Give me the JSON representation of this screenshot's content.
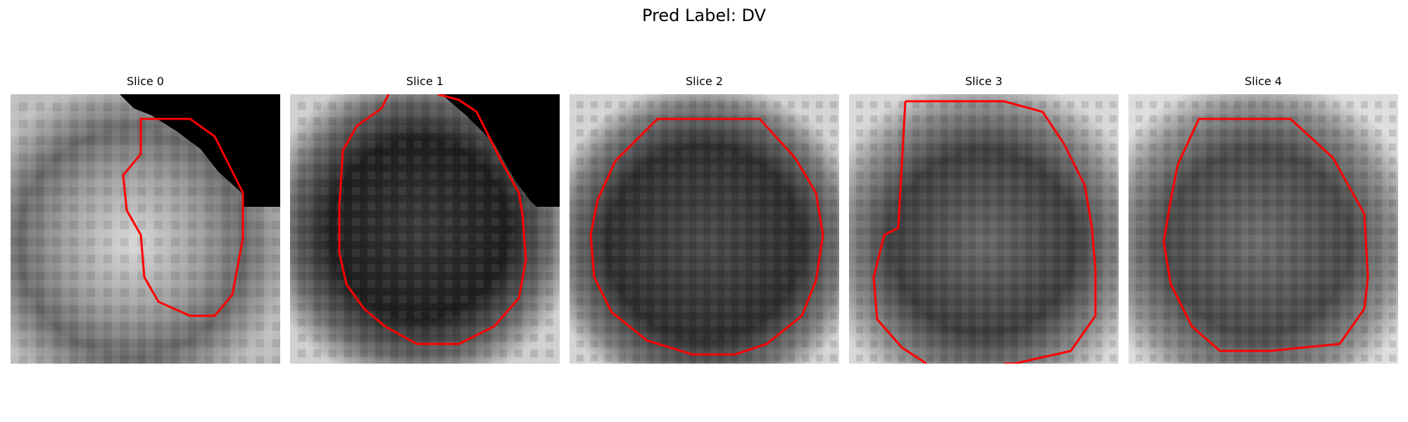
{
  "figure": {
    "title": "Pred Label: DV"
  },
  "panels": [
    {
      "title": "Slice 0",
      "contour_color": "#ff0000",
      "background": "grey MRI-like lesion slice, black masked corner top-right",
      "mask_fill": "#000000"
    },
    {
      "title": "Slice 1",
      "contour_color": "#ff0000",
      "background": "dark grey lesion slice, black masked region top-right",
      "mask_fill": "#000000"
    },
    {
      "title": "Slice 2",
      "contour_color": "#ff0000",
      "background": "dark grey round lesion slice"
    },
    {
      "title": "Slice 3",
      "contour_color": "#ff0000",
      "background": "grey lesion slice"
    },
    {
      "title": "Slice 4",
      "contour_color": "#ff0000",
      "background": "grey lesion slice"
    }
  ]
}
